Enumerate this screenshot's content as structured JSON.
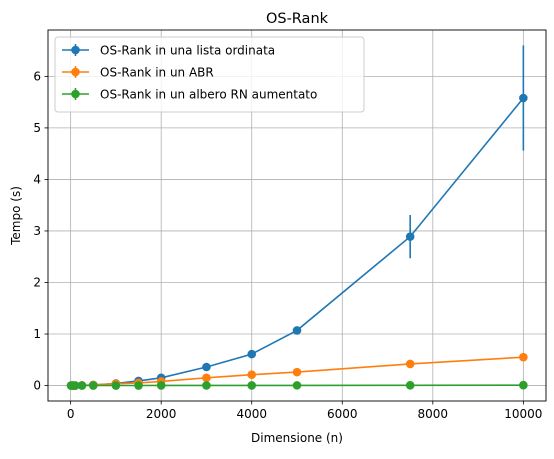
{
  "chart_data": {
    "type": "line",
    "title": "OS-Rank",
    "xlabel": "Dimensione (n)",
    "ylabel": "Tempo (s)",
    "xlim": [
      -500,
      10500
    ],
    "ylim": [
      -0.3,
      6.9
    ],
    "xticks": [
      0,
      2000,
      4000,
      6000,
      8000,
      10000
    ],
    "yticks": [
      0,
      1,
      2,
      3,
      4,
      5,
      6
    ],
    "grid": true,
    "legend_position": "top-left",
    "x": [
      10,
      50,
      100,
      250,
      500,
      1000,
      1500,
      2000,
      3000,
      4000,
      5000,
      7500,
      10000
    ],
    "series": [
      {
        "name": "OS-Rank in una lista ordinata",
        "color": "#1f77b4",
        "values": [
          0.0,
          0.0,
          0.0,
          0.003,
          0.012,
          0.04,
          0.09,
          0.15,
          0.36,
          0.61,
          1.07,
          2.89,
          5.58
        ],
        "errors": [
          0.0,
          0.0,
          0.0,
          0.0,
          0.0,
          0.0,
          0.0,
          0.01,
          0.02,
          0.03,
          0.07,
          0.42,
          1.02
        ]
      },
      {
        "name": "OS-Rank in un ABR",
        "color": "#ff7f0e",
        "values": [
          0.0,
          0.0,
          0.0,
          0.003,
          0.01,
          0.035,
          0.05,
          0.08,
          0.15,
          0.21,
          0.26,
          0.42,
          0.55
        ],
        "errors": [
          0.0,
          0.0,
          0.0,
          0.0,
          0.0,
          0.0,
          0.0,
          0.0,
          0.0,
          0.0,
          0.0,
          0.0,
          0.0
        ]
      },
      {
        "name": "OS-Rank in un albero RN aumentato",
        "color": "#2ca02c",
        "values": [
          0.0,
          0.0,
          0.0,
          0.0,
          0.0,
          0.0,
          0.0,
          0.002,
          0.002,
          0.002,
          0.003,
          0.005,
          0.007
        ],
        "errors": [
          0.0,
          0.0,
          0.0,
          0.0,
          0.0,
          0.0,
          0.0,
          0.0,
          0.0,
          0.0,
          0.0,
          0.0,
          0.0
        ]
      }
    ]
  }
}
